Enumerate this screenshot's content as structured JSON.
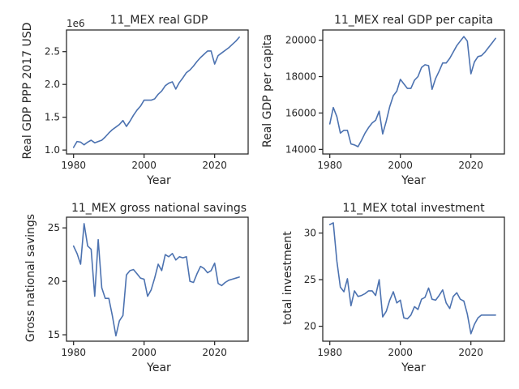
{
  "colors": {
    "series": "#4c72b0",
    "axes": "#262626"
  },
  "chart_data": [
    {
      "type": "line",
      "title": "11_MEX real GDP",
      "xlabel": "Year",
      "ylabel": "Real GDP PPP 2017 USD",
      "offset_label": "1e6",
      "xlim": [
        1978,
        2029.5
      ],
      "ylim": [
        0.94,
        2.83
      ],
      "xticks": [
        1980,
        2000,
        2020
      ],
      "yticks": [
        1.0,
        1.5,
        2.0,
        2.5
      ],
      "ytick_labels": [
        "1.0",
        "1.5",
        "2.0",
        "2.5"
      ],
      "x": [
        1980,
        1981,
        1982,
        1983,
        1984,
        1985,
        1986,
        1987,
        1988,
        1989,
        1990,
        1991,
        1992,
        1993,
        1994,
        1995,
        1996,
        1997,
        1998,
        1999,
        2000,
        2001,
        2002,
        2003,
        2004,
        2005,
        2006,
        2007,
        2008,
        2009,
        2010,
        2011,
        2012,
        2013,
        2014,
        2015,
        2016,
        2017,
        2018,
        2019,
        2020,
        2021,
        2022,
        2023,
        2024,
        2025,
        2026,
        2027
      ],
      "values": [
        1.04,
        1.13,
        1.12,
        1.08,
        1.12,
        1.15,
        1.11,
        1.13,
        1.15,
        1.2,
        1.26,
        1.31,
        1.35,
        1.39,
        1.45,
        1.36,
        1.44,
        1.53,
        1.61,
        1.67,
        1.76,
        1.76,
        1.76,
        1.78,
        1.85,
        1.9,
        1.98,
        2.02,
        2.04,
        1.93,
        2.03,
        2.1,
        2.18,
        2.22,
        2.28,
        2.35,
        2.41,
        2.46,
        2.51,
        2.51,
        2.31,
        2.44,
        2.48,
        2.52,
        2.56,
        2.61,
        2.66,
        2.72
      ]
    },
    {
      "type": "line",
      "title": "11_MEX real GDP per capita",
      "xlabel": "Year",
      "ylabel": "Real GDP per capita",
      "xlim": [
        1978,
        2029.5
      ],
      "ylim": [
        13750,
        20560
      ],
      "xticks": [
        1980,
        2000,
        2020
      ],
      "yticks": [
        14000,
        16000,
        18000,
        20000
      ],
      "ytick_labels": [
        "14000",
        "16000",
        "18000",
        "20000"
      ],
      "x": [
        1980,
        1981,
        1982,
        1983,
        1984,
        1985,
        1986,
        1987,
        1988,
        1989,
        1990,
        1991,
        1992,
        1993,
        1994,
        1995,
        1996,
        1997,
        1998,
        1999,
        2000,
        2001,
        2002,
        2003,
        2004,
        2005,
        2006,
        2007,
        2008,
        2009,
        2010,
        2011,
        2012,
        2013,
        2014,
        2015,
        2016,
        2017,
        2018,
        2019,
        2020,
        2021,
        2022,
        2023,
        2024,
        2025,
        2026,
        2027
      ],
      "values": [
        15400,
        16300,
        15800,
        14900,
        15050,
        15050,
        14300,
        14250,
        14150,
        14500,
        14900,
        15200,
        15450,
        15600,
        16100,
        14850,
        15550,
        16350,
        16950,
        17200,
        17850,
        17600,
        17350,
        17350,
        17800,
        18000,
        18500,
        18650,
        18600,
        17300,
        17900,
        18300,
        18750,
        18750,
        19000,
        19350,
        19700,
        19950,
        20200,
        19950,
        18150,
        18800,
        19100,
        19150,
        19350,
        19600,
        19850,
        20100
      ]
    },
    {
      "type": "line",
      "title": "11_MEX gross national savings",
      "xlabel": "Year",
      "ylabel": "Gross national savings",
      "xlim": [
        1978,
        2029.5
      ],
      "ylim": [
        14.4,
        26.0
      ],
      "xticks": [
        1980,
        2000,
        2020
      ],
      "yticks": [
        15,
        20,
        25
      ],
      "ytick_labels": [
        "15",
        "20",
        "25"
      ],
      "x": [
        1980,
        1981,
        1982,
        1983,
        1984,
        1985,
        1986,
        1987,
        1988,
        1989,
        1990,
        1991,
        1992,
        1993,
        1994,
        1995,
        1996,
        1997,
        1998,
        1999,
        2000,
        2001,
        2002,
        2003,
        2004,
        2005,
        2006,
        2007,
        2008,
        2009,
        2010,
        2011,
        2012,
        2013,
        2014,
        2015,
        2016,
        2017,
        2018,
        2019,
        2020,
        2021,
        2022,
        2023,
        2024,
        2025,
        2026,
        2027
      ],
      "values": [
        23.3,
        22.6,
        21.6,
        25.4,
        23.3,
        23.0,
        18.6,
        23.9,
        19.4,
        18.4,
        18.4,
        16.8,
        14.9,
        16.3,
        16.8,
        20.6,
        21.0,
        21.1,
        20.7,
        20.3,
        20.2,
        18.6,
        19.2,
        20.3,
        21.6,
        21.0,
        22.5,
        22.3,
        22.6,
        22.0,
        22.3,
        22.2,
        22.3,
        20.0,
        19.9,
        20.7,
        21.4,
        21.2,
        20.8,
        21.0,
        21.7,
        19.8,
        19.6,
        19.9,
        20.1,
        20.2,
        20.3,
        20.4
      ]
    },
    {
      "type": "line",
      "title": "11_MEX total investment",
      "xlabel": "Year",
      "ylabel": "total investment",
      "xlim": [
        1978,
        2029.5
      ],
      "ylim": [
        18.4,
        31.7
      ],
      "xticks": [
        1980,
        2000,
        2020
      ],
      "yticks": [
        20,
        25,
        30
      ],
      "ytick_labels": [
        "20",
        "25",
        "30"
      ],
      "x": [
        1980,
        1981,
        1982,
        1983,
        1984,
        1985,
        1986,
        1987,
        1988,
        1989,
        1990,
        1991,
        1992,
        1993,
        1994,
        1995,
        1996,
        1997,
        1998,
        1999,
        2000,
        2001,
        2002,
        2003,
        2004,
        2005,
        2006,
        2007,
        2008,
        2009,
        2010,
        2011,
        2012,
        2013,
        2014,
        2015,
        2016,
        2017,
        2018,
        2019,
        2020,
        2021,
        2022,
        2023,
        2024,
        2025,
        2026,
        2027
      ],
      "values": [
        30.9,
        31.1,
        27.0,
        24.2,
        23.7,
        25.1,
        22.2,
        23.8,
        23.2,
        23.3,
        23.5,
        23.8,
        23.8,
        23.3,
        25.0,
        21.0,
        21.6,
        22.8,
        23.7,
        22.5,
        22.8,
        20.9,
        20.8,
        21.2,
        22.1,
        21.8,
        22.9,
        23.1,
        24.1,
        22.9,
        22.8,
        23.3,
        23.9,
        22.5,
        21.9,
        23.2,
        23.6,
        22.9,
        22.7,
        21.3,
        19.2,
        20.2,
        20.9,
        21.2,
        21.2,
        21.2,
        21.2,
        21.2
      ]
    }
  ]
}
